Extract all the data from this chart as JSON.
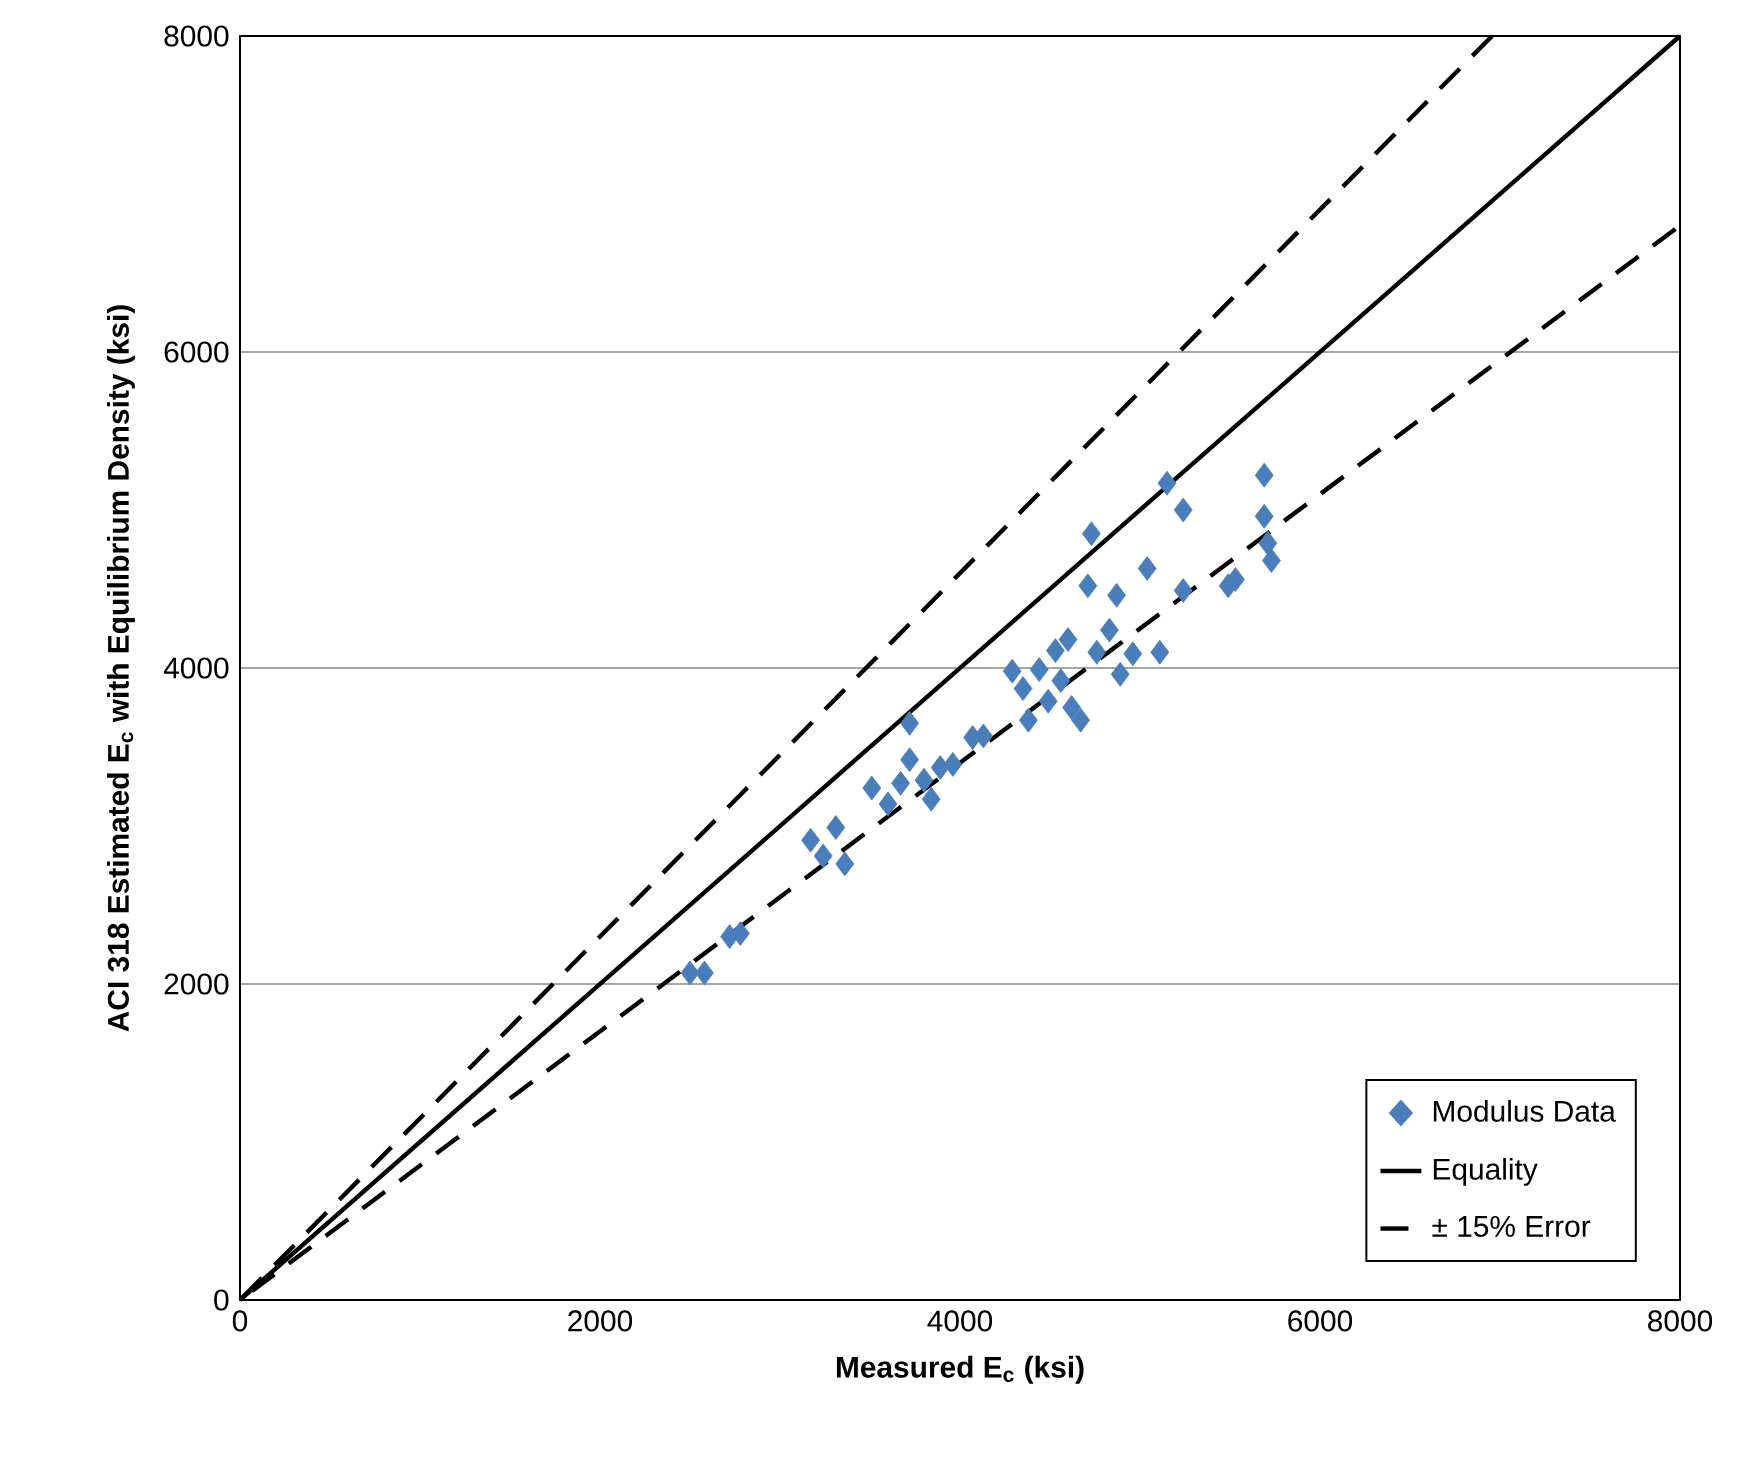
{
  "chart_data": {
    "type": "scatter",
    "xlabel": "Measured E$_{c}$ (ksi)",
    "ylabel": "ACI 318 Estimated E$_{c}$ with Equilibrium Density (ksi)",
    "xlim": [
      0,
      8000
    ],
    "ylim": [
      0,
      8000
    ],
    "xticks": [
      0,
      2000,
      4000,
      6000,
      8000
    ],
    "yticks": [
      0,
      2000,
      4000,
      6000,
      8000
    ],
    "grid": "y",
    "legend": "bottom right",
    "series": [
      {
        "name": "Modulus Data",
        "color": "#4a7ebb",
        "marker": "diamond",
        "x": [
          2500,
          2580,
          2720,
          2780,
          3170,
          3240,
          3310,
          3360,
          3510,
          3600,
          3670,
          3720,
          3720,
          3800,
          3840,
          3890,
          3960,
          4070,
          4130,
          4290,
          4350,
          4380,
          4440,
          4490,
          4530,
          4560,
          4600,
          4620,
          4670,
          4710,
          4760,
          4730,
          4830,
          4870,
          4890,
          4960,
          5040,
          5110,
          5150,
          5240,
          5240,
          5490,
          5530,
          5690,
          5690,
          5710,
          5730
        ],
        "values": [
          2070,
          2070,
          2300,
          2320,
          2910,
          2810,
          2990,
          2760,
          3240,
          3140,
          3270,
          3420,
          3650,
          3290,
          3170,
          3370,
          3390,
          3560,
          3570,
          3980,
          3870,
          3670,
          3990,
          3790,
          4110,
          3920,
          4180,
          3750,
          3670,
          4520,
          4100,
          4850,
          4240,
          4460,
          3960,
          4090,
          4630,
          4100,
          5170,
          5000,
          4490,
          4520,
          4560,
          5220,
          4960,
          4790,
          4680
        ]
      },
      {
        "name": "Equality",
        "type": "line",
        "color": "#000000",
        "line_style": "solid",
        "marker": "none",
        "x": [
          0,
          8000
        ],
        "values": [
          0,
          8000
        ]
      },
      {
        "name": "± 15% Error",
        "type": "line",
        "color": "#000000",
        "line_style": "dashed",
        "marker": "none",
        "x": [
          6956,
          0,
          8000
        ],
        "values": [
          8000,
          0,
          6800
        ]
      }
    ]
  }
}
